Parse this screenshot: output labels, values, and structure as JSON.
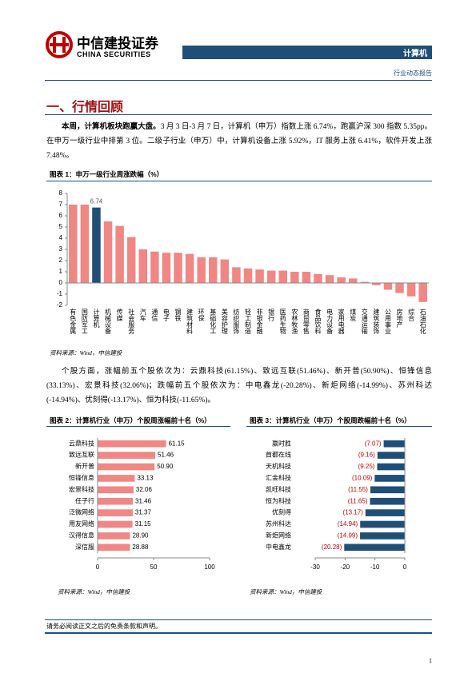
{
  "header": {
    "logo_cn": "中信建投证券",
    "logo_en": "CHINA SECURITIES",
    "sector": "计算机",
    "report_type": "行业动态报告"
  },
  "section_title": "一、行情回顾",
  "paragraphs": [
    {
      "lead": "本周，计算机板块跑赢大盘。",
      "body": "3 月 3 日-3 月 7 日，计算机（申万）指数上涨 6.74%，跑赢沪深 300 指数 5.35pp。在申万一级行业中排第 3 位。二级子行业（申万）中，计算机设备上涨 5.92%，IT 服务上涨 6.41%，软件开发上涨 7.48%。"
    },
    {
      "lead": "",
      "body": "个股方面，涨幅前五个股依次为：云鼎科技(61.15%)、致远互联(51.46%)、新开普(50.90%)、恒锋信息(33.13%)、宏景科技(32.06%)；跌幅前五个股依次为：中电鑫龙(-20.28%)、新炬网络(-14.99%)、苏州科达(-14.94%)、优刻得(-13.17%)、恒为科技(-11.65%)。"
    }
  ],
  "chart_data": [
    {
      "type": "bar",
      "title": "图表 1：申万一级行业周涨跌幅（%）",
      "categories": [
        "有色金属",
        "国防军工",
        "计算机",
        "机械设备",
        "传媒",
        "社会服务",
        "汽车",
        "通信",
        "电子",
        "钢铁",
        "建筑材料",
        "环保",
        "基础化工",
        "美容护理",
        "纺织服饰",
        "轻工制造",
        "非银金融",
        "银行",
        "医药生物",
        "农林牧渔",
        "商贸零售",
        "食品饮料",
        "电力设备",
        "家用电器",
        "煤炭",
        "交通运输",
        "建筑装饰",
        "公用事业",
        "房地产",
        "综合",
        "石油石化"
      ],
      "values": [
        7.0,
        7.0,
        6.74,
        5.5,
        5.1,
        4.1,
        3.0,
        2.8,
        2.7,
        2.7,
        2.6,
        2.3,
        2.3,
        2.1,
        1.4,
        1.3,
        1.2,
        1.1,
        1.1,
        1.0,
        1.0,
        0.8,
        0.7,
        0.5,
        0.4,
        0.1,
        -0.2,
        -0.6,
        -0.9,
        -1.2,
        -1.7
      ],
      "colors": [
        "#f08784",
        "#f08784",
        "#1f4e79",
        "#f08784",
        "#f08784",
        "#f08784",
        "#f08784",
        "#f08784",
        "#f08784",
        "#f08784",
        "#f08784",
        "#f08784",
        "#f08784",
        "#f08784",
        "#f08784",
        "#f08784",
        "#f08784",
        "#f08784",
        "#f08784",
        "#f08784",
        "#f08784",
        "#f08784",
        "#f08784",
        "#f08784",
        "#f08784",
        "#f08784",
        "#f08784",
        "#f08784",
        "#f08784",
        "#f08784",
        "#f08784"
      ],
      "data_labels": [
        false,
        false,
        true,
        false,
        false,
        false,
        false,
        false,
        false,
        false,
        false,
        false,
        false,
        false,
        false,
        false,
        false,
        false,
        false,
        false,
        false,
        false,
        false,
        false,
        false,
        false,
        false,
        false,
        false,
        false,
        false
      ],
      "ylim": [
        -2,
        8
      ],
      "yticks": [
        -2,
        -1,
        0,
        1,
        2,
        3,
        4,
        5,
        6,
        7,
        8
      ],
      "source": "资料来源：Wind，中信建投"
    },
    {
      "type": "hbar",
      "title": "图表 2：计算机行业（申万）个股周涨幅前十名（%）",
      "categories": [
        "云鼎科技",
        "致远互联",
        "新开普",
        "恒锋信息",
        "宏景科技",
        "任子行",
        "泛微网络",
        "用友网络",
        "汉得信息",
        "深信服"
      ],
      "values": [
        61.15,
        51.46,
        50.9,
        33.13,
        32.06,
        31.46,
        31.37,
        31.15,
        28.9,
        28.88
      ],
      "value_labels": [
        "61.15",
        "51.46",
        "50.90",
        "33.13",
        "32.06",
        "31.46",
        "31.37",
        "31.15",
        "28.90",
        "28.88"
      ],
      "color": "#f08784",
      "label_color": "#000000",
      "xlim": [
        0,
        100
      ],
      "xticks": [
        0,
        50,
        100
      ],
      "source": "资料来源：Wind，中信建投"
    },
    {
      "type": "hbar",
      "title": "图表 3：计算机行业（申万）个股周跌幅前十名（%）",
      "categories": [
        "赢时胜",
        "首都在线",
        "天机科技",
        "汇金科技",
        "凯旺科技",
        "恒为科技",
        "优刻得",
        "苏州科达",
        "新炬网络",
        "中电鑫龙"
      ],
      "values": [
        -7.07,
        -9.16,
        -9.25,
        -10.09,
        -11.55,
        -11.65,
        -13.17,
        -14.94,
        -14.99,
        -20.28
      ],
      "value_labels": [
        "(7.07)",
        "(9.16)",
        "(9.25)",
        "(10.09)",
        "(11.55)",
        "(11.65)",
        "(13.17)",
        "(14.94)",
        "(14.99)",
        "(20.28)"
      ],
      "color": "#1f4e79",
      "label_color": "#c00000",
      "xlim": [
        -30,
        0
      ],
      "xticks": [
        -30,
        -20,
        -10,
        0
      ],
      "source": "资料来源：Wind，中信建投"
    }
  ],
  "footer": {
    "disclaimer": "请务必阅读正文之后的免责条款和声明。",
    "page": "1"
  }
}
